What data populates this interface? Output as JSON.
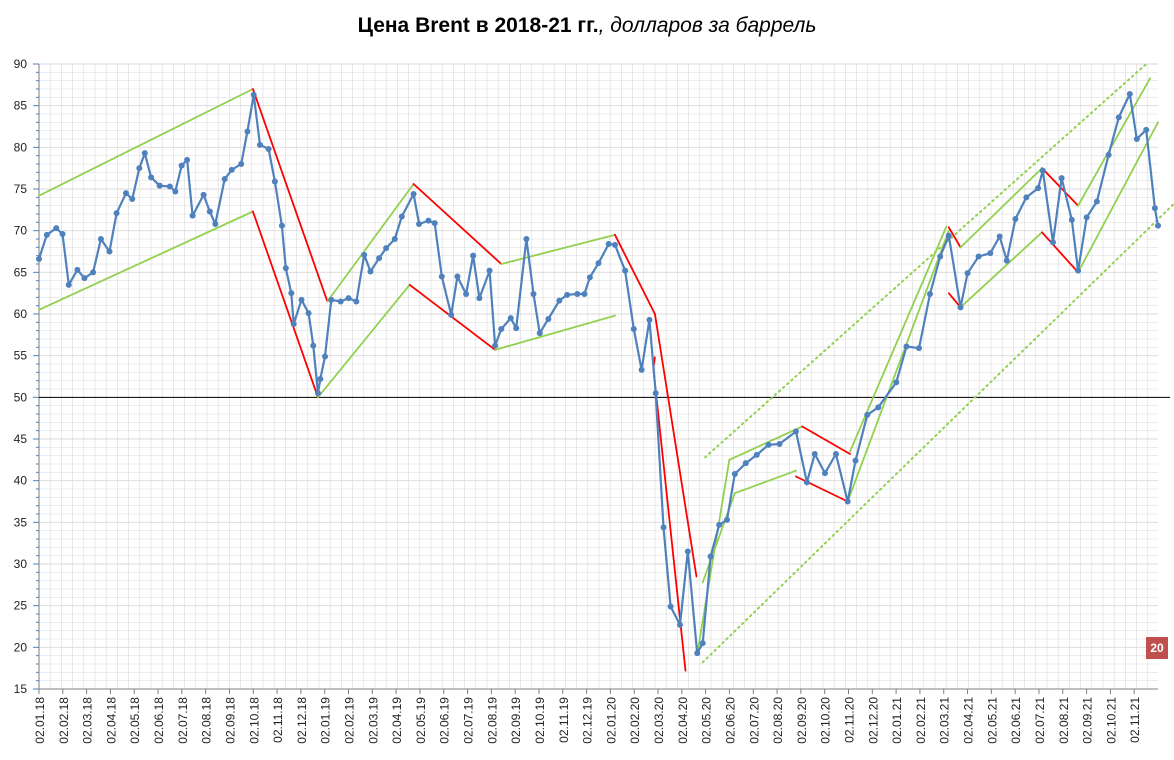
{
  "title": {
    "bold": "Цена Brent в 2018-21 гг.",
    "italic": ", долларов за баррель"
  },
  "badge": "20",
  "colors": {
    "series": "#4f81bd",
    "marker": "#4f81bd",
    "uptrend": "#92d050",
    "downtrend": "#ff0000",
    "reference": "#000000",
    "grid": "#d9d9d9",
    "badge": "#c0504d"
  },
  "chart_data": {
    "type": "line",
    "title": "Цена Brent в 2018-21 гг., долларов за баррель",
    "xlabel": "",
    "ylabel": "",
    "ylim": [
      15,
      90
    ],
    "y_ticks": [
      15,
      20,
      25,
      30,
      35,
      40,
      45,
      50,
      55,
      60,
      65,
      70,
      75,
      80,
      85,
      90
    ],
    "x_range": [
      "2018-01-02",
      "2021-11-30"
    ],
    "x_tick_labels": [
      "02.01.18",
      "02.02.18",
      "02.03.18",
      "02.04.18",
      "02.05.18",
      "02.06.18",
      "02.07.18",
      "02.08.18",
      "02.09.18",
      "02.10.18",
      "02.11.18",
      "02.12.18",
      "02.01.19",
      "02.02.19",
      "02.03.19",
      "02.04.19",
      "02.05.19",
      "02.06.19",
      "02.07.19",
      "02.08.19",
      "02.09.19",
      "02.10.19",
      "02.11.19",
      "02.12.19",
      "02.01.20",
      "02.02.20",
      "02.03.20",
      "02.04.20",
      "02.05.20",
      "02.06.20",
      "02.07.20",
      "02.08.20",
      "02.09.20",
      "02.10.20",
      "02.11.20",
      "02.12.20",
      "02.01.21",
      "02.02.21",
      "02.03.21",
      "02.04.21",
      "02.05.21",
      "02.06.21",
      "02.07.21",
      "02.08.21",
      "02.09.21",
      "02.10.21",
      "02.11.21"
    ],
    "grid": true,
    "legend": "none",
    "reference_line": 50,
    "series": [
      {
        "values": [
          [
            "2018-01-02",
            66.6
          ],
          [
            "2018-01-12",
            69.5
          ],
          [
            "2018-01-24",
            70.3
          ],
          [
            "2018-02-01",
            69.6
          ],
          [
            "2018-02-09",
            63.5
          ],
          [
            "2018-02-20",
            65.3
          ],
          [
            "2018-03-01",
            64.3
          ],
          [
            "2018-03-12",
            65.0
          ],
          [
            "2018-03-22",
            69.0
          ],
          [
            "2018-04-02",
            67.5
          ],
          [
            "2018-04-11",
            72.1
          ],
          [
            "2018-04-23",
            74.5
          ],
          [
            "2018-05-01",
            73.8
          ],
          [
            "2018-05-10",
            77.5
          ],
          [
            "2018-05-17",
            79.3
          ],
          [
            "2018-05-25",
            76.4
          ],
          [
            "2018-06-05",
            75.4
          ],
          [
            "2018-06-18",
            75.3
          ],
          [
            "2018-06-25",
            74.7
          ],
          [
            "2018-07-03",
            77.8
          ],
          [
            "2018-07-10",
            78.5
          ],
          [
            "2018-07-17",
            71.8
          ],
          [
            "2018-07-31",
            74.3
          ],
          [
            "2018-08-08",
            72.3
          ],
          [
            "2018-08-15",
            70.8
          ],
          [
            "2018-08-27",
            76.2
          ],
          [
            "2018-09-05",
            77.3
          ],
          [
            "2018-09-17",
            78.0
          ],
          [
            "2018-09-25",
            81.9
          ],
          [
            "2018-10-03",
            86.3
          ],
          [
            "2018-10-11",
            80.3
          ],
          [
            "2018-10-22",
            79.8
          ],
          [
            "2018-10-30",
            75.9
          ],
          [
            "2018-11-08",
            70.6
          ],
          [
            "2018-11-13",
            65.5
          ],
          [
            "2018-11-20",
            62.5
          ],
          [
            "2018-11-23",
            58.8
          ],
          [
            "2018-12-03",
            61.7
          ],
          [
            "2018-12-12",
            60.1
          ],
          [
            "2018-12-18",
            56.2
          ],
          [
            "2018-12-24",
            50.5
          ],
          [
            "2018-12-27",
            52.2
          ],
          [
            "2019-01-02",
            54.9
          ],
          [
            "2019-01-10",
            61.7
          ],
          [
            "2019-01-22",
            61.5
          ],
          [
            "2019-02-01",
            61.9
          ],
          [
            "2019-02-11",
            61.5
          ],
          [
            "2019-02-21",
            67.1
          ],
          [
            "2019-03-01",
            65.1
          ],
          [
            "2019-03-12",
            66.7
          ],
          [
            "2019-03-21",
            67.9
          ],
          [
            "2019-04-01",
            69.0
          ],
          [
            "2019-04-10",
            71.7
          ],
          [
            "2019-04-25",
            74.4
          ],
          [
            "2019-05-02",
            70.8
          ],
          [
            "2019-05-14",
            71.2
          ],
          [
            "2019-05-22",
            70.9
          ],
          [
            "2019-05-31",
            64.5
          ],
          [
            "2019-06-12",
            59.9
          ],
          [
            "2019-06-20",
            64.5
          ],
          [
            "2019-07-01",
            62.4
          ],
          [
            "2019-07-10",
            67.0
          ],
          [
            "2019-07-18",
            61.9
          ],
          [
            "2019-07-31",
            65.2
          ],
          [
            "2019-08-07",
            56.2
          ],
          [
            "2019-08-15",
            58.2
          ],
          [
            "2019-08-27",
            59.5
          ],
          [
            "2019-09-03",
            58.3
          ],
          [
            "2019-09-16",
            69.0
          ],
          [
            "2019-09-25",
            62.4
          ],
          [
            "2019-10-03",
            57.7
          ],
          [
            "2019-10-14",
            59.4
          ],
          [
            "2019-10-28",
            61.6
          ],
          [
            "2019-11-07",
            62.3
          ],
          [
            "2019-11-20",
            62.4
          ],
          [
            "2019-11-29",
            62.4
          ],
          [
            "2019-12-06",
            64.4
          ],
          [
            "2019-12-17",
            66.1
          ],
          [
            "2019-12-30",
            68.4
          ],
          [
            "2020-01-07",
            68.3
          ],
          [
            "2020-01-20",
            65.2
          ],
          [
            "2020-01-31",
            58.2
          ],
          [
            "2020-02-10",
            53.3
          ],
          [
            "2020-02-20",
            59.3
          ],
          [
            "2020-02-28",
            50.5
          ],
          [
            "2020-03-09",
            34.4
          ],
          [
            "2020-03-18",
            24.9
          ],
          [
            "2020-03-30",
            22.7
          ],
          [
            "2020-04-09",
            31.5
          ],
          [
            "2020-04-21",
            19.3
          ],
          [
            "2020-04-28",
            20.5
          ],
          [
            "2020-05-08",
            30.9
          ],
          [
            "2020-05-19",
            34.7
          ],
          [
            "2020-05-29",
            35.3
          ],
          [
            "2020-06-08",
            40.8
          ],
          [
            "2020-06-22",
            42.1
          ],
          [
            "2020-07-06",
            43.1
          ],
          [
            "2020-07-21",
            44.3
          ],
          [
            "2020-08-04",
            44.4
          ],
          [
            "2020-08-25",
            45.9
          ],
          [
            "2020-09-08",
            39.8
          ],
          [
            "2020-09-18",
            43.2
          ],
          [
            "2020-10-01",
            40.9
          ],
          [
            "2020-10-15",
            43.2
          ],
          [
            "2020-10-30",
            37.5
          ],
          [
            "2020-11-09",
            42.4
          ],
          [
            "2020-11-24",
            47.9
          ],
          [
            "2020-12-08",
            48.8
          ],
          [
            "2020-12-31",
            51.8
          ],
          [
            "2021-01-13",
            56.1
          ],
          [
            "2021-01-29",
            55.9
          ],
          [
            "2021-02-12",
            62.4
          ],
          [
            "2021-02-25",
            66.9
          ],
          [
            "2021-03-08",
            69.4
          ],
          [
            "2021-03-23",
            60.8
          ],
          [
            "2021-04-01",
            64.9
          ],
          [
            "2021-04-15",
            66.9
          ],
          [
            "2021-04-30",
            67.3
          ],
          [
            "2021-05-12",
            69.3
          ],
          [
            "2021-05-21",
            66.4
          ],
          [
            "2021-06-01",
            71.4
          ],
          [
            "2021-06-15",
            74.0
          ],
          [
            "2021-06-30",
            75.1
          ],
          [
            "2021-07-06",
            77.2
          ],
          [
            "2021-07-19",
            68.6
          ],
          [
            "2021-07-30",
            76.3
          ],
          [
            "2021-08-12",
            71.3
          ],
          [
            "2021-08-20",
            65.2
          ],
          [
            "2021-08-31",
            71.6
          ],
          [
            "2021-09-13",
            73.5
          ],
          [
            "2021-09-28",
            79.1
          ],
          [
            "2021-10-11",
            83.6
          ],
          [
            "2021-10-25",
            86.4
          ],
          [
            "2021-11-03",
            81.0
          ],
          [
            "2021-11-15",
            82.1
          ],
          [
            "2021-11-26",
            72.7
          ],
          [
            "2021-11-30",
            70.6
          ]
        ]
      }
    ],
    "trend_segments": [
      {
        "color": "uptrend",
        "style": "solid",
        "from": [
          "2018-01-02",
          74.2
        ],
        "to": [
          "2018-10-02",
          87.0
        ]
      },
      {
        "color": "uptrend",
        "style": "solid",
        "from": [
          "2018-01-02",
          60.5
        ],
        "to": [
          "2018-10-02",
          72.3
        ]
      },
      {
        "color": "downtrend",
        "style": "solid",
        "from": [
          "2018-10-02",
          87.0
        ],
        "to": [
          "2019-01-05",
          61.5
        ]
      },
      {
        "color": "downtrend",
        "style": "solid",
        "from": [
          "2018-10-02",
          72.3
        ],
        "to": [
          "2018-12-24",
          50.0
        ]
      },
      {
        "color": "uptrend",
        "style": "solid",
        "from": [
          "2018-12-24",
          50.0
        ],
        "to": [
          "2019-04-20",
          63.5
        ]
      },
      {
        "color": "uptrend",
        "style": "solid",
        "from": [
          "2019-01-05",
          61.5
        ],
        "to": [
          "2019-04-25",
          75.6
        ]
      },
      {
        "color": "downtrend",
        "style": "solid",
        "from": [
          "2019-04-25",
          75.6
        ],
        "to": [
          "2019-08-15",
          66.0
        ]
      },
      {
        "color": "downtrend",
        "style": "solid",
        "from": [
          "2019-04-20",
          63.5
        ],
        "to": [
          "2019-08-07",
          55.7
        ]
      },
      {
        "color": "uptrend",
        "style": "solid",
        "from": [
          "2019-08-15",
          66.0
        ],
        "to": [
          "2020-01-07",
          69.5
        ]
      },
      {
        "color": "uptrend",
        "style": "solid",
        "from": [
          "2019-08-07",
          55.7
        ],
        "to": [
          "2020-01-07",
          59.8
        ]
      },
      {
        "color": "downtrend",
        "style": "solid",
        "from": [
          "2020-01-07",
          69.5
        ],
        "to": [
          "2020-02-27",
          60.0
        ]
      },
      {
        "color": "downtrend",
        "style": "solid",
        "from": [
          "2020-02-25",
          53.5
        ],
        "to": [
          "2020-02-27",
          54.8
        ]
      },
      {
        "color": "downtrend",
        "style": "solid",
        "from": [
          "2020-02-27",
          60.0
        ],
        "to": [
          "2020-04-20",
          28.5
        ]
      },
      {
        "color": "downtrend",
        "style": "solid",
        "from": [
          "2020-02-25",
          53.5
        ],
        "to": [
          "2020-04-06",
          17.2
        ]
      },
      {
        "color": "uptrend",
        "style": "solid",
        "from": [
          "2020-04-21",
          19.2
        ],
        "to": [
          "2020-06-01",
          42.5
        ]
      },
      {
        "color": "uptrend",
        "style": "solid",
        "from": [
          "2020-04-28",
          27.8
        ],
        "to": [
          "2020-06-08",
          38.5
        ]
      },
      {
        "color": "uptrend",
        "style": "solid",
        "from": [
          "2020-06-01",
          42.5
        ],
        "to": [
          "2020-09-02",
          46.5
        ]
      },
      {
        "color": "uptrend",
        "style": "solid",
        "from": [
          "2020-06-08",
          38.5
        ],
        "to": [
          "2020-08-25",
          41.2
        ]
      },
      {
        "color": "downtrend",
        "style": "solid",
        "from": [
          "2020-09-02",
          46.5
        ],
        "to": [
          "2020-11-02",
          43.2
        ]
      },
      {
        "color": "downtrend",
        "style": "solid",
        "from": [
          "2020-08-25",
          40.5
        ],
        "to": [
          "2020-10-30",
          37.5
        ]
      },
      {
        "color": "uptrend",
        "style": "solid",
        "from": [
          "2020-10-30",
          37.5
        ],
        "to": [
          "2021-03-08",
          70.0
        ]
      },
      {
        "color": "uptrend",
        "style": "solid",
        "from": [
          "2020-11-02",
          43.5
        ],
        "to": [
          "2021-03-05",
          70.5
        ]
      },
      {
        "color": "downtrend",
        "style": "solid",
        "from": [
          "2021-03-08",
          70.4
        ],
        "to": [
          "2021-03-23",
          68.0
        ]
      },
      {
        "color": "downtrend",
        "style": "solid",
        "from": [
          "2021-03-08",
          62.5
        ],
        "to": [
          "2021-03-23",
          60.8
        ]
      },
      {
        "color": "uptrend",
        "style": "solid",
        "from": [
          "2021-03-23",
          68.0
        ],
        "to": [
          "2021-07-05",
          77.5
        ]
      },
      {
        "color": "uptrend",
        "style": "solid",
        "from": [
          "2021-03-23",
          60.8
        ],
        "to": [
          "2021-07-05",
          69.8
        ]
      },
      {
        "color": "downtrend",
        "style": "solid",
        "from": [
          "2021-07-05",
          77.5
        ],
        "to": [
          "2021-08-20",
          73.0
        ]
      },
      {
        "color": "downtrend",
        "style": "solid",
        "from": [
          "2021-07-05",
          69.8
        ],
        "to": [
          "2021-08-20",
          65.0
        ]
      },
      {
        "color": "uptrend",
        "style": "solid",
        "from": [
          "2021-08-20",
          65.0
        ],
        "to": [
          "2021-11-30",
          83.0
        ]
      },
      {
        "color": "uptrend",
        "style": "solid",
        "from": [
          "2021-08-20",
          73.0
        ],
        "to": [
          "2021-11-20",
          88.3
        ]
      },
      {
        "color": "uptrend",
        "style": "dotted",
        "from": [
          "2020-04-28",
          18.2
        ],
        "to": [
          "2021-12-31",
          74.2
        ]
      },
      {
        "color": "uptrend",
        "style": "dotted",
        "from": [
          "2020-05-01",
          42.8
        ],
        "to": [
          "2021-11-15",
          90.0
        ]
      }
    ]
  }
}
